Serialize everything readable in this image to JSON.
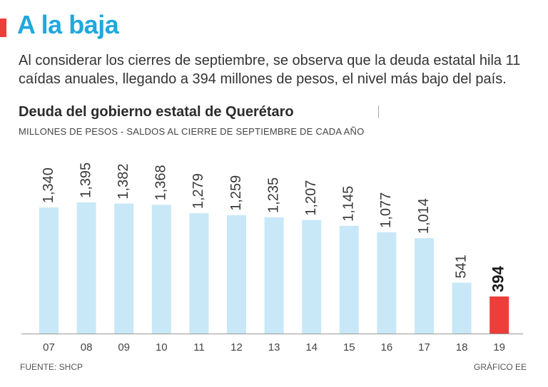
{
  "header": {
    "title": "A la baja",
    "lead": "Al considerar los cierres de septiembre, se observa que la deuda estatal hila 11 caídas anuales, llegando a 394 millones de pesos, el nivel más bajo del país."
  },
  "chart_data": {
    "type": "bar",
    "title": "Deuda del gobierno estatal de Querétaro",
    "subtitle": "MILLONES DE PESOS - SALDOS AL CIERRE DE SEPTIEMBRE DE CADA AÑO",
    "categories": [
      "07",
      "08",
      "09",
      "10",
      "11",
      "12",
      "13",
      "14",
      "15",
      "16",
      "17",
      "18",
      "19"
    ],
    "values": [
      1340,
      1395,
      1382,
      1368,
      1279,
      1259,
      1235,
      1207,
      1145,
      1077,
      1014,
      541,
      394
    ],
    "value_labels": [
      "1,340",
      "1,395",
      "1,382",
      "1,368",
      "1,279",
      "1,259",
      "1,235",
      "1,207",
      "1,145",
      "1,077",
      "1,014",
      "541",
      "394"
    ],
    "highlight_index": 12,
    "ylim": [
      0,
      1400
    ],
    "grid": false,
    "colors": {
      "bar": "#c8e8f8",
      "highlight": "#ee3e3a",
      "baseline": "#999999"
    }
  },
  "footer": {
    "source": "FUENTE: SHCP",
    "credit": "GRÁFICO EE"
  }
}
